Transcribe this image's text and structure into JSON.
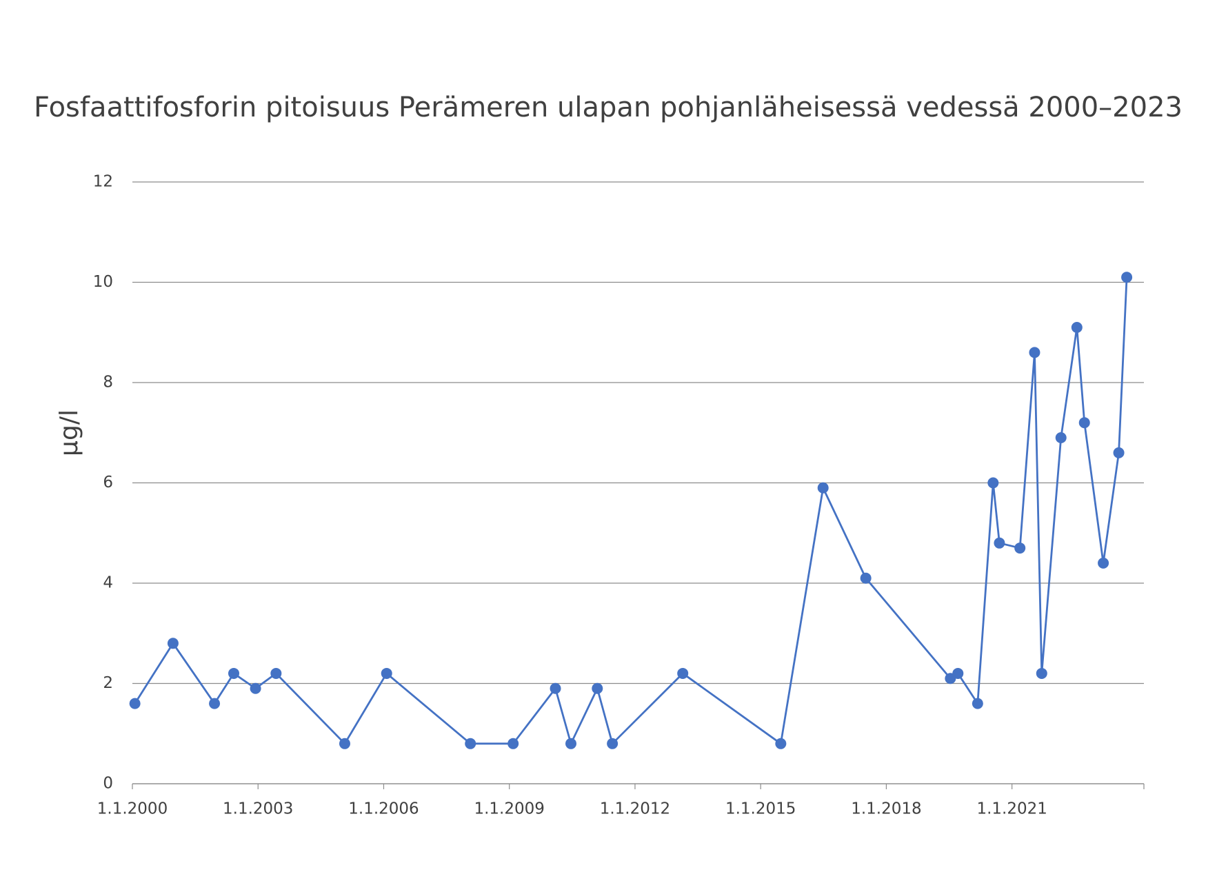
{
  "chart_data": {
    "type": "line",
    "title": "Fosfaattifosforin pitoisuus Perämeren ulapan pohjanläheisessä vedessä 2000–2023",
    "y_label": "µg/l",
    "series": [
      {
        "color": "#4472c4",
        "x": [
          2000.06,
          2000.97,
          2001.96,
          2002.42,
          2002.94,
          2003.43,
          2005.07,
          2006.07,
          2008.07,
          2009.09,
          2010.1,
          2010.47,
          2011.1,
          2011.46,
          2013.14,
          2015.48,
          2016.49,
          2017.51,
          2019.53,
          2019.71,
          2020.18,
          2020.55,
          2020.7,
          2021.19,
          2021.54,
          2021.71,
          2022.17,
          2022.55,
          2022.73,
          2023.18,
          2023.55,
          2023.74
        ],
        "values": [
          1.6,
          2.8,
          1.6,
          2.2,
          1.9,
          2.2,
          0.8,
          2.2,
          0.8,
          0.8,
          1.9,
          0.8,
          1.9,
          0.8,
          2.2,
          0.8,
          5.9,
          4.1,
          2.1,
          2.2,
          1.6,
          6.0,
          4.8,
          4.7,
          8.6,
          2.2,
          6.9,
          9.1,
          7.2,
          4.4,
          6.6,
          10.1
        ]
      }
    ],
    "xlim": [
      2000,
      2024.15
    ],
    "xticks": [
      {
        "value": 2000,
        "label": "1.1.2000"
      },
      {
        "value": 2003,
        "label": "1.1.2003"
      },
      {
        "value": 2006,
        "label": "1.1.2006"
      },
      {
        "value": 2009,
        "label": "1.1.2009"
      },
      {
        "value": 2012,
        "label": "1.1.2012"
      },
      {
        "value": 2015,
        "label": "1.1.2015"
      },
      {
        "value": 2018,
        "label": "1.1.2018"
      },
      {
        "value": 2021,
        "label": "1.1.2021"
      }
    ],
    "ylim": [
      0,
      12
    ],
    "yticks": [
      0,
      2,
      4,
      6,
      8,
      10,
      12
    ],
    "grid": true
  }
}
